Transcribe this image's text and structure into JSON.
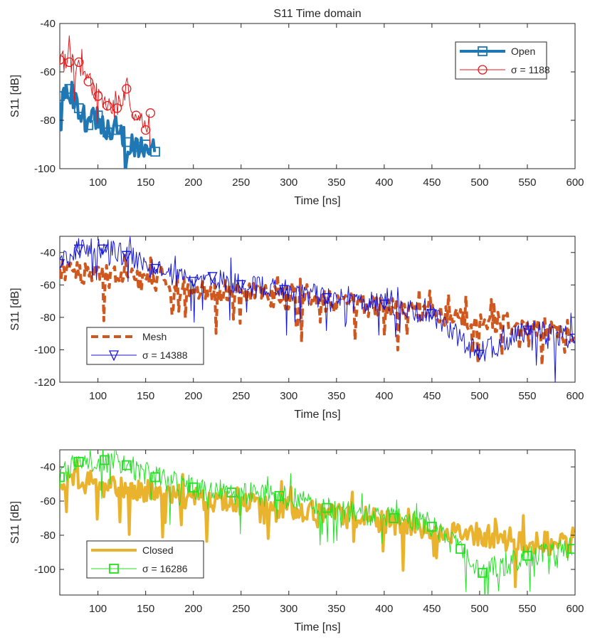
{
  "figure_title": "S11 Time domain",
  "chart_data": [
    {
      "type": "line",
      "title": "S11 Time domain",
      "xlabel": "Time [ns]",
      "ylabel": "S11 [dB]",
      "xlim": [
        60,
        600
      ],
      "ylim": [
        -100,
        -40
      ],
      "xticks": [
        100,
        150,
        200,
        250,
        300,
        350,
        400,
        450,
        500,
        550,
        600
      ],
      "yticks": [
        -40,
        -60,
        -80,
        -100
      ],
      "grid": false,
      "legend_position": "top-right",
      "series": [
        {
          "name": "Open",
          "color": "#1f77b4",
          "marker": "square",
          "line_width": 4,
          "x": [
            60,
            70,
            80,
            90,
            100,
            110,
            120,
            130,
            140,
            150,
            160
          ],
          "y": [
            -70,
            -67,
            -75,
            -82,
            -78,
            -85,
            -84,
            -89,
            -91,
            -90,
            -93
          ]
        },
        {
          "name": "σ = 1188",
          "color": "#e31a1c",
          "marker": "circle",
          "line_width": 1,
          "x": [
            60,
            70,
            80,
            90,
            100,
            110,
            120,
            130,
            140,
            150,
            155
          ],
          "y": [
            -55,
            -56,
            -56,
            -64,
            -70,
            -74,
            -75,
            -67,
            -78,
            -84,
            -77
          ]
        }
      ]
    },
    {
      "type": "line",
      "xlabel": "Time [ns]",
      "ylabel": "S11 [dB]",
      "xlim": [
        60,
        600
      ],
      "ylim": [
        -120,
        -30
      ],
      "xticks": [
        100,
        150,
        200,
        250,
        300,
        350,
        400,
        450,
        500,
        550,
        600
      ],
      "yticks": [
        -40,
        -60,
        -80,
        -100,
        -120
      ],
      "grid": false,
      "legend_position": "bottom-left",
      "series": [
        {
          "name": "Mesh",
          "color": "#d0581e",
          "marker": "none",
          "line_style": "dashed",
          "line_width": 4,
          "x": [
            60,
            100,
            150,
            200,
            250,
            300,
            350,
            400,
            450,
            500,
            550,
            600
          ],
          "y": [
            -52,
            -54,
            -58,
            -62,
            -65,
            -68,
            -70,
            -74,
            -78,
            -82,
            -86,
            -88
          ]
        },
        {
          "name": "σ = 14388",
          "color": "#1515d8",
          "marker": "triangle-down",
          "line_width": 1,
          "x": [
            60,
            80,
            105,
            130,
            160,
            200,
            220,
            250,
            295,
            340,
            400,
            450,
            500,
            550,
            600
          ],
          "y": [
            -47,
            -38,
            -38,
            -42,
            -50,
            -58,
            -55,
            -60,
            -63,
            -68,
            -72,
            -78,
            -103,
            -88,
            -93
          ]
        }
      ]
    },
    {
      "type": "line",
      "xlabel": "Time [ns]",
      "ylabel": "S11 [dB]",
      "xlim": [
        60,
        600
      ],
      "ylim": [
        -115,
        -30
      ],
      "xticks": [
        100,
        150,
        200,
        250,
        300,
        350,
        400,
        450,
        500,
        550,
        600
      ],
      "yticks": [
        -40,
        -60,
        -80,
        -100
      ],
      "grid": false,
      "legend_position": "bottom-left",
      "series": [
        {
          "name": "Closed",
          "color": "#eab32d",
          "marker": "none",
          "line_width": 4,
          "x": [
            60,
            100,
            150,
            200,
            250,
            300,
            350,
            400,
            450,
            500,
            550,
            600
          ],
          "y": [
            -46,
            -50,
            -54,
            -58,
            -61,
            -64,
            -68,
            -72,
            -76,
            -80,
            -84,
            -86
          ]
        },
        {
          "name": "σ = 16286",
          "color": "#22e022",
          "marker": "square",
          "line_width": 1,
          "x": [
            60,
            80,
            107,
            130,
            160,
            200,
            240,
            290,
            340,
            410,
            450,
            480,
            503,
            550,
            597
          ],
          "y": [
            -46,
            -37,
            -36,
            -39,
            -46,
            -52,
            -55,
            -57,
            -64,
            -70,
            -75,
            -88,
            -102,
            -92,
            -88
          ]
        }
      ]
    }
  ]
}
